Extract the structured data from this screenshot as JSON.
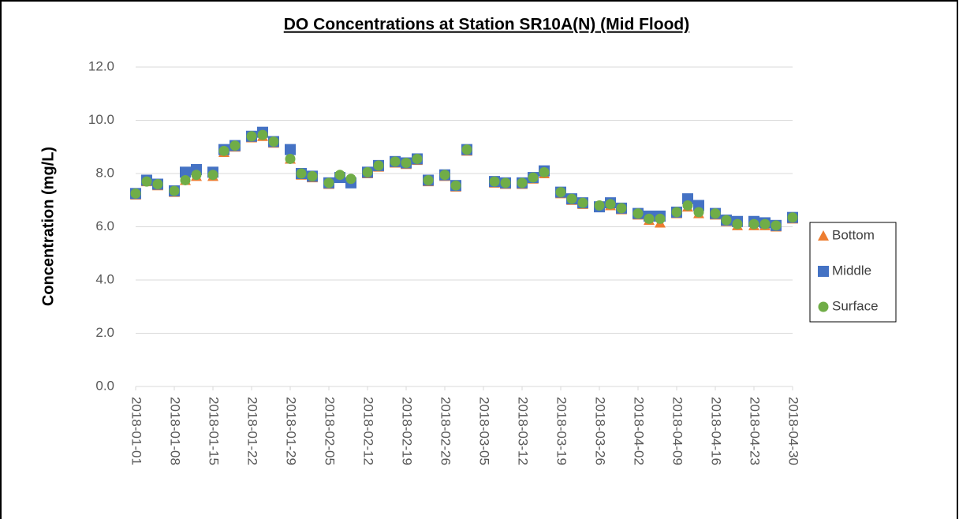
{
  "chart_data": {
    "type": "scatter",
    "title": "DO Concentrations at Station SR10A(N) (Mid Flood)",
    "y_label": "Concentration (mg/L)",
    "x": [
      "2018-01-01",
      "2018-01-03",
      "2018-01-05",
      "2018-01-08",
      "2018-01-10",
      "2018-01-12",
      "2018-01-15",
      "2018-01-17",
      "2018-01-19",
      "2018-01-22",
      "2018-01-24",
      "2018-01-26",
      "2018-01-29",
      "2018-01-31",
      "2018-02-02",
      "2018-02-05",
      "2018-02-07",
      "2018-02-09",
      "2018-02-12",
      "2018-02-14",
      "2018-02-17",
      "2018-02-19",
      "2018-02-21",
      "2018-02-23",
      "2018-02-26",
      "2018-02-28",
      "2018-03-02",
      "2018-03-07",
      "2018-03-09",
      "2018-03-12",
      "2018-03-14",
      "2018-03-16",
      "2018-03-19",
      "2018-03-21",
      "2018-03-23",
      "2018-03-26",
      "2018-03-28",
      "2018-03-30",
      "2018-04-02",
      "2018-04-04",
      "2018-04-06",
      "2018-04-09",
      "2018-04-11",
      "2018-04-13",
      "2018-04-16",
      "2018-04-18",
      "2018-04-20",
      "2018-04-23",
      "2018-04-25",
      "2018-04-27",
      "2018-04-30"
    ],
    "series": [
      {
        "name": "Bottom",
        "color": "#ed7d31",
        "marker": "triangle",
        "values": [
          7.2,
          7.7,
          7.55,
          7.3,
          7.75,
          7.9,
          7.9,
          8.8,
          9.0,
          9.35,
          9.4,
          9.15,
          8.55,
          7.95,
          7.85,
          7.6,
          7.9,
          7.75,
          8.0,
          8.25,
          8.4,
          8.35,
          8.5,
          7.7,
          7.9,
          7.5,
          8.85,
          7.65,
          7.6,
          7.6,
          7.8,
          8.0,
          7.25,
          7.0,
          6.85,
          6.75,
          6.8,
          6.65,
          6.45,
          6.25,
          6.15,
          6.5,
          6.75,
          6.5,
          6.45,
          6.2,
          6.05,
          6.05,
          6.05,
          6.0,
          6.3
        ]
      },
      {
        "name": "Middle",
        "color": "#4472c4",
        "marker": "square",
        "values": [
          7.25,
          7.75,
          7.6,
          7.35,
          8.05,
          8.15,
          8.05,
          8.9,
          9.05,
          9.4,
          9.55,
          9.2,
          8.9,
          8.0,
          7.9,
          7.65,
          7.85,
          7.65,
          8.05,
          8.3,
          8.45,
          8.4,
          8.55,
          7.75,
          7.95,
          7.55,
          8.9,
          7.7,
          7.65,
          7.65,
          7.85,
          8.1,
          7.3,
          7.05,
          6.9,
          6.75,
          6.9,
          6.7,
          6.5,
          6.4,
          6.4,
          6.55,
          7.05,
          6.8,
          6.5,
          6.25,
          6.2,
          6.2,
          6.15,
          6.05,
          6.35
        ]
      },
      {
        "name": "Surface",
        "color": "#70ad47",
        "marker": "circle",
        "values": [
          7.25,
          7.7,
          7.6,
          7.35,
          7.75,
          7.95,
          7.95,
          8.85,
          9.05,
          9.4,
          9.45,
          9.2,
          8.55,
          8.0,
          7.9,
          7.65,
          7.95,
          7.8,
          8.05,
          8.3,
          8.45,
          8.4,
          8.55,
          7.75,
          7.95,
          7.55,
          8.9,
          7.7,
          7.65,
          7.65,
          7.85,
          8.05,
          7.3,
          7.05,
          6.9,
          6.8,
          6.85,
          6.7,
          6.5,
          6.3,
          6.3,
          6.55,
          6.8,
          6.55,
          6.5,
          6.25,
          6.1,
          6.1,
          6.1,
          6.05,
          6.35
        ]
      }
    ],
    "xlim": [
      "2018-01-01",
      "2018-04-30"
    ],
    "xticks": [
      "2018-01-01",
      "2018-01-08",
      "2018-01-15",
      "2018-01-22",
      "2018-01-29",
      "2018-02-05",
      "2018-02-12",
      "2018-02-19",
      "2018-02-26",
      "2018-03-05",
      "2018-03-12",
      "2018-03-19",
      "2018-03-26",
      "2018-04-02",
      "2018-04-09",
      "2018-04-16",
      "2018-04-23",
      "2018-04-30"
    ],
    "ylim": [
      0,
      12
    ],
    "yticks": [
      {
        "value": 0,
        "label": "0.0"
      },
      {
        "value": 2,
        "label": "2.0"
      },
      {
        "value": 4,
        "label": "4.0"
      },
      {
        "value": 6,
        "label": "6.0"
      },
      {
        "value": 8,
        "label": "8.0"
      },
      {
        "value": 10,
        "label": "10.0"
      },
      {
        "value": 12,
        "label": "12.0"
      }
    ],
    "grid": true,
    "legend": "right"
  }
}
